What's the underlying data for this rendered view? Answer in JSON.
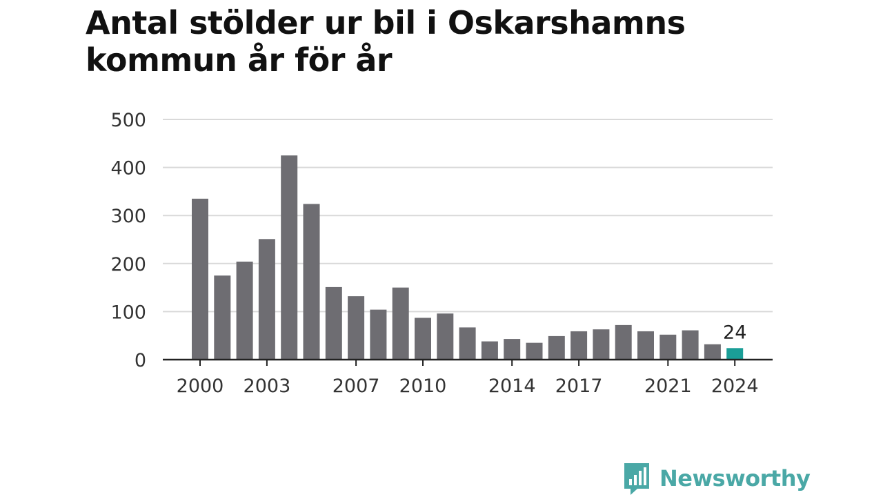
{
  "title_line1": "Antal stölder ur bil i Oskarshamns",
  "title_line2": "kommun år för år",
  "brand": "Newsworthy",
  "colors": {
    "bar": "#6e6d72",
    "highlight": "#1a9e97",
    "grid": "#d9d9d9",
    "axis": "#222222",
    "text": "#333333",
    "brand": "#4aa8a6"
  },
  "chart_data": {
    "type": "bar",
    "x": [
      2000,
      2001,
      2002,
      2003,
      2004,
      2005,
      2006,
      2007,
      2008,
      2009,
      2010,
      2011,
      2012,
      2013,
      2014,
      2015,
      2016,
      2017,
      2018,
      2019,
      2020,
      2021,
      2022,
      2023,
      2024
    ],
    "values": [
      335,
      175,
      204,
      251,
      425,
      324,
      151,
      132,
      104,
      150,
      87,
      96,
      67,
      38,
      43,
      35,
      49,
      59,
      63,
      72,
      59,
      52,
      61,
      32,
      24
    ],
    "ylim": [
      0,
      500
    ],
    "yticks": [
      0,
      100,
      200,
      300,
      400,
      500
    ],
    "xtick_labels": [
      "2000",
      "2003",
      "2007",
      "2010",
      "2014",
      "2017",
      "2021",
      "2024"
    ],
    "highlight": {
      "x": 2024,
      "label": "24"
    },
    "grid": true
  }
}
